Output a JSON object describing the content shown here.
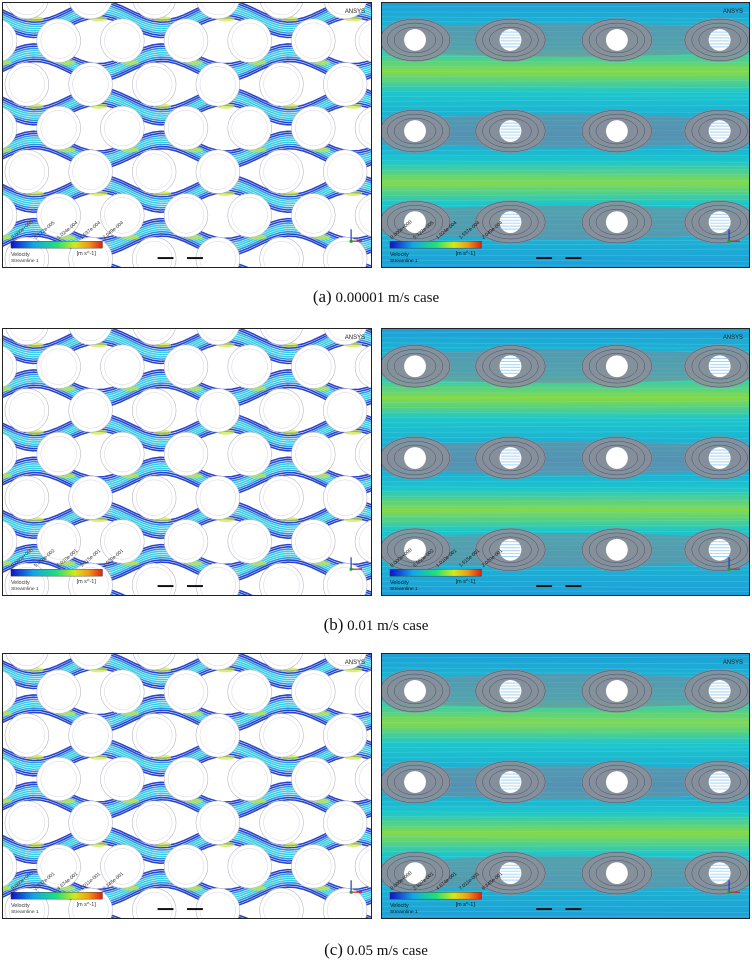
{
  "figure": {
    "rows": [
      {
        "caption_letter": "(a)",
        "caption_text": "0.00001 m/s case",
        "logo": "ANSYS",
        "variable": "Velocity",
        "streamline": "Streamline 1",
        "unit": "[m s^-1]",
        "ticks": [
          "0.000e+000",
          "5.122e-005",
          "1.024e-004",
          "1.537e-004",
          "2.049e-004"
        ]
      },
      {
        "caption_letter": "(b)",
        "caption_text": "0.01 m/s case",
        "logo": "ANSYS",
        "variable": "Velocity",
        "streamline": "Streamline 1",
        "unit": "[m s^-1]",
        "ticks": [
          "0.000e+000",
          "5.050e-002",
          "1.010e-001",
          "1.515e-001",
          "2.020e-001"
        ]
      },
      {
        "caption_letter": "(c)",
        "caption_text": "0.05 m/s case",
        "logo": "ANSYS",
        "variable": "Velocity",
        "streamline": "Streamline 1",
        "unit": "[m s^-1]",
        "ticks": [
          "0.000e+000",
          "2.337e-001",
          "4.674e-001",
          "7.011e-001",
          "9.348e-001"
        ]
      }
    ],
    "colors": {
      "flow_low": "#0a2fd0",
      "flow_mid": "#19c6e6",
      "flow_high": "#e8e21a",
      "flow_max": "#e0281a",
      "wall": "#ffffff",
      "grey_wake": "#8c8c8c"
    }
  }
}
